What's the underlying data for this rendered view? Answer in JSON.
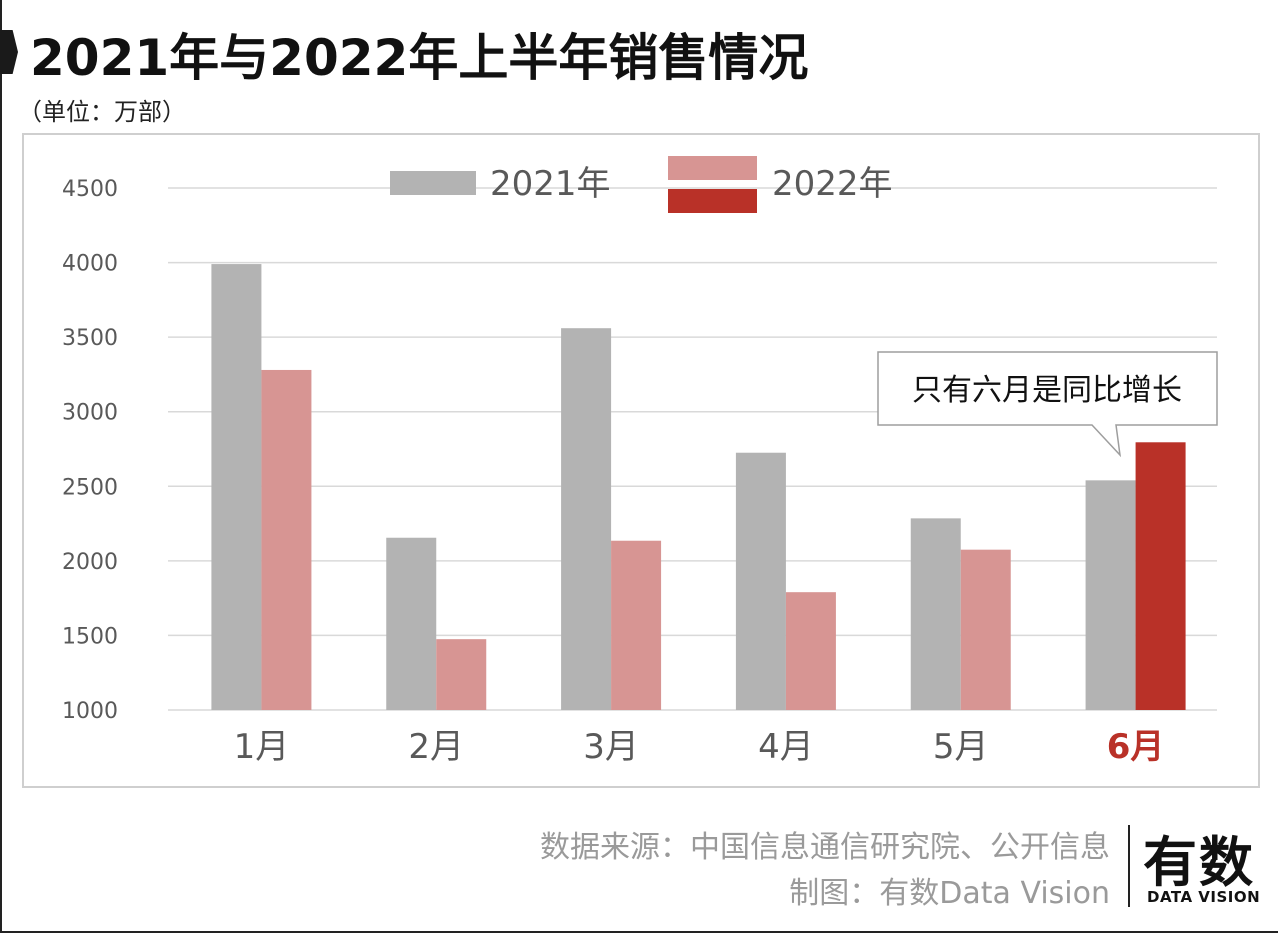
{
  "header": {
    "title": "2021年与2022年上半年销售情况",
    "unit": "（单位：万部）"
  },
  "chart_data": {
    "type": "bar",
    "title": "2021年与2022年上半年销售情况",
    "ylabel": "（单位：万部）",
    "xlabel": "",
    "categories": [
      "1月",
      "2月",
      "3月",
      "4月",
      "5月",
      "6月"
    ],
    "series": [
      {
        "name": "2021年",
        "values": [
          3990,
          2155,
          3560,
          2725,
          2285,
          2540
        ],
        "color": "#b3b3b3"
      },
      {
        "name": "2022年",
        "values": [
          3280,
          1475,
          2135,
          1790,
          2075,
          2795
        ],
        "color": "#d79593",
        "highlight_color": "#b93128"
      }
    ],
    "highlight_category": "6月",
    "ylim": [
      1000,
      4500
    ],
    "yticks": [
      1000,
      1500,
      2000,
      2500,
      3000,
      3500,
      4000,
      4500
    ],
    "grid": true,
    "legend": "top",
    "annotation": "只有六月是同比增长"
  },
  "colors": {
    "grid": "#d9d9d9",
    "tick_text": "#595959",
    "highlight_text": "#b93128",
    "footer_text": "#9a9a9a"
  },
  "footer": {
    "source": "数据来源：中国信息通信研究院、公开信息",
    "credit": "制图：有数Data Vision",
    "logo_cn": "有数",
    "logo_en": "DATA VISION"
  }
}
